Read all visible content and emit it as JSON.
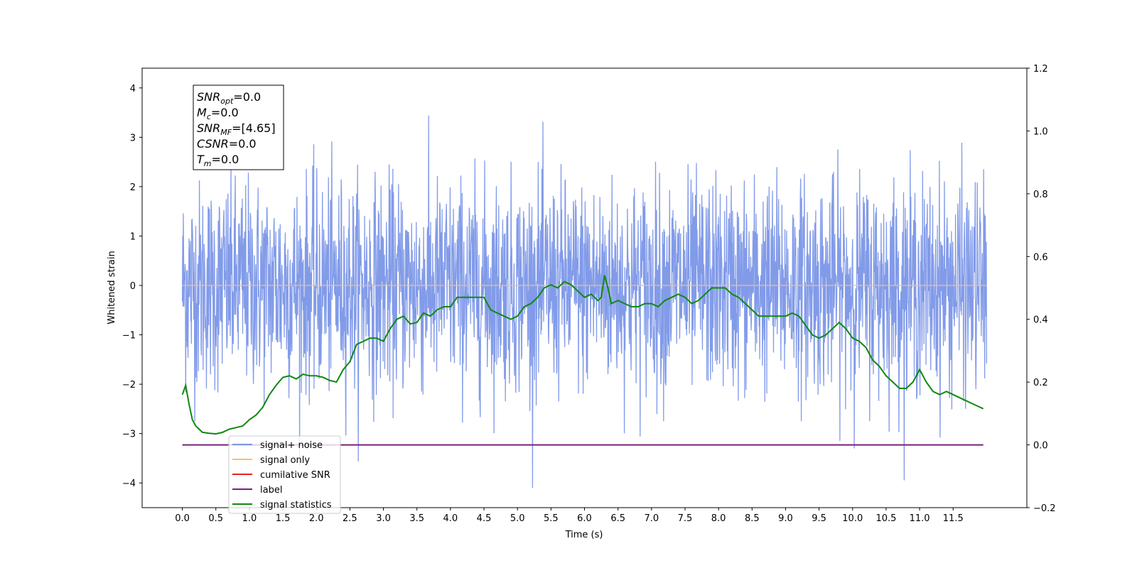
{
  "chart_data": {
    "type": "line",
    "xlabel": "Time (s)",
    "ylabel": "Whitened strain",
    "xlim": [
      -0.6,
      12.6
    ],
    "ylim": [
      -4.5,
      4.4
    ],
    "y2lim": [
      -0.2,
      1.2
    ],
    "x_ticks": [
      "0.0",
      "0.5",
      "1.0",
      "1.5",
      "2.0",
      "2.5",
      "3.0",
      "3.5",
      "4.0",
      "4.5",
      "5.0",
      "5.5",
      "6.0",
      "6.5",
      "7.0",
      "7.5",
      "8.0",
      "8.5",
      "9.0",
      "9.5",
      "10.0",
      "10.5",
      "11.0",
      "11.5"
    ],
    "y_ticks": [
      "4",
      "3",
      "2",
      "1",
      "0",
      "−1",
      "−2",
      "−3",
      "−4"
    ],
    "y2_ticks": [
      "1.2",
      "1.0",
      "0.8",
      "0.6",
      "0.4",
      "0.2",
      "0.0",
      "−0.2"
    ],
    "annotation": {
      "lines": [
        {
          "name": "SNR",
          "sub": "opt",
          "value": "=0.0"
        },
        {
          "name": "M",
          "sub": "c",
          "value": "=0.0"
        },
        {
          "name": "SNR",
          "sub": "MF",
          "value": "=[4.65]"
        },
        {
          "name": "CSNR",
          "sub": "",
          "value": "=0.0"
        },
        {
          "name": "T",
          "sub": "m",
          "value": "=0.0"
        }
      ]
    },
    "legend_position": "lower-left",
    "series": [
      {
        "name": "signal+ noise",
        "color": "#7b96e8",
        "axis": "left",
        "x_range": [
          0.0,
          12.0
        ],
        "y_envelope": [
          -4.1,
          4.0
        ],
        "note_shape": "dense noise"
      },
      {
        "name": "signal only",
        "color": "#f5c070",
        "axis": "left",
        "x": [
          0.0,
          12.0
        ],
        "y": [
          0.0,
          0.0
        ]
      },
      {
        "name": "cumilative SNR",
        "color": "#e8201f",
        "axis": "right",
        "x": [],
        "y": []
      },
      {
        "name": "label",
        "color": "#7a1f7a",
        "axis": "right",
        "x": [
          0.0,
          11.95
        ],
        "y": [
          0.0,
          0.0
        ]
      },
      {
        "name": "signal statistics",
        "color": "#118811",
        "axis": "right",
        "x": [
          0.0,
          0.05,
          0.1,
          0.15,
          0.2,
          0.3,
          0.4,
          0.5,
          0.6,
          0.7,
          0.8,
          0.9,
          1.0,
          1.1,
          1.2,
          1.3,
          1.4,
          1.5,
          1.6,
          1.7,
          1.8,
          1.9,
          2.0,
          2.1,
          2.2,
          2.3,
          2.4,
          2.5,
          2.6,
          2.7,
          2.8,
          2.9,
          3.0,
          3.1,
          3.2,
          3.3,
          3.4,
          3.5,
          3.6,
          3.7,
          3.8,
          3.9,
          4.0,
          4.1,
          4.2,
          4.3,
          4.4,
          4.5,
          4.6,
          4.7,
          4.8,
          4.9,
          5.0,
          5.1,
          5.2,
          5.3,
          5.4,
          5.5,
          5.6,
          5.7,
          5.8,
          5.9,
          6.0,
          6.1,
          6.2,
          6.25,
          6.3,
          6.35,
          6.4,
          6.5,
          6.6,
          6.7,
          6.8,
          6.9,
          7.0,
          7.1,
          7.2,
          7.3,
          7.4,
          7.5,
          7.6,
          7.7,
          7.8,
          7.9,
          8.0,
          8.1,
          8.2,
          8.3,
          8.4,
          8.5,
          8.6,
          8.7,
          8.8,
          8.9,
          9.0,
          9.1,
          9.2,
          9.3,
          9.4,
          9.5,
          9.6,
          9.7,
          9.8,
          9.9,
          10.0,
          10.1,
          10.2,
          10.3,
          10.4,
          10.5,
          10.6,
          10.7,
          10.8,
          10.9,
          11.0,
          11.1,
          11.2,
          11.3,
          11.4,
          11.5,
          11.6,
          11.7,
          11.8,
          11.9,
          11.95
        ],
        "y": [
          0.16,
          0.19,
          0.13,
          0.08,
          0.06,
          0.04,
          0.037,
          0.035,
          0.04,
          0.05,
          0.055,
          0.06,
          0.08,
          0.095,
          0.12,
          0.16,
          0.19,
          0.215,
          0.22,
          0.21,
          0.225,
          0.22,
          0.22,
          0.215,
          0.205,
          0.2,
          0.24,
          0.265,
          0.32,
          0.33,
          0.34,
          0.34,
          0.33,
          0.37,
          0.4,
          0.41,
          0.385,
          0.39,
          0.42,
          0.41,
          0.43,
          0.44,
          0.44,
          0.47,
          0.47,
          0.47,
          0.47,
          0.47,
          0.43,
          0.42,
          0.41,
          0.4,
          0.41,
          0.44,
          0.45,
          0.47,
          0.5,
          0.51,
          0.5,
          0.52,
          0.51,
          0.49,
          0.47,
          0.48,
          0.46,
          0.47,
          0.54,
          0.5,
          0.45,
          0.46,
          0.45,
          0.44,
          0.44,
          0.45,
          0.45,
          0.44,
          0.46,
          0.47,
          0.48,
          0.47,
          0.45,
          0.46,
          0.48,
          0.5,
          0.5,
          0.5,
          0.48,
          0.47,
          0.45,
          0.43,
          0.41,
          0.41,
          0.41,
          0.41,
          0.41,
          0.42,
          0.41,
          0.38,
          0.35,
          0.34,
          0.35,
          0.37,
          0.39,
          0.37,
          0.34,
          0.33,
          0.31,
          0.27,
          0.25,
          0.22,
          0.2,
          0.18,
          0.18,
          0.2,
          0.24,
          0.2,
          0.17,
          0.16,
          0.17,
          0.16,
          0.15,
          0.14,
          0.13,
          0.12,
          0.115
        ]
      }
    ]
  }
}
